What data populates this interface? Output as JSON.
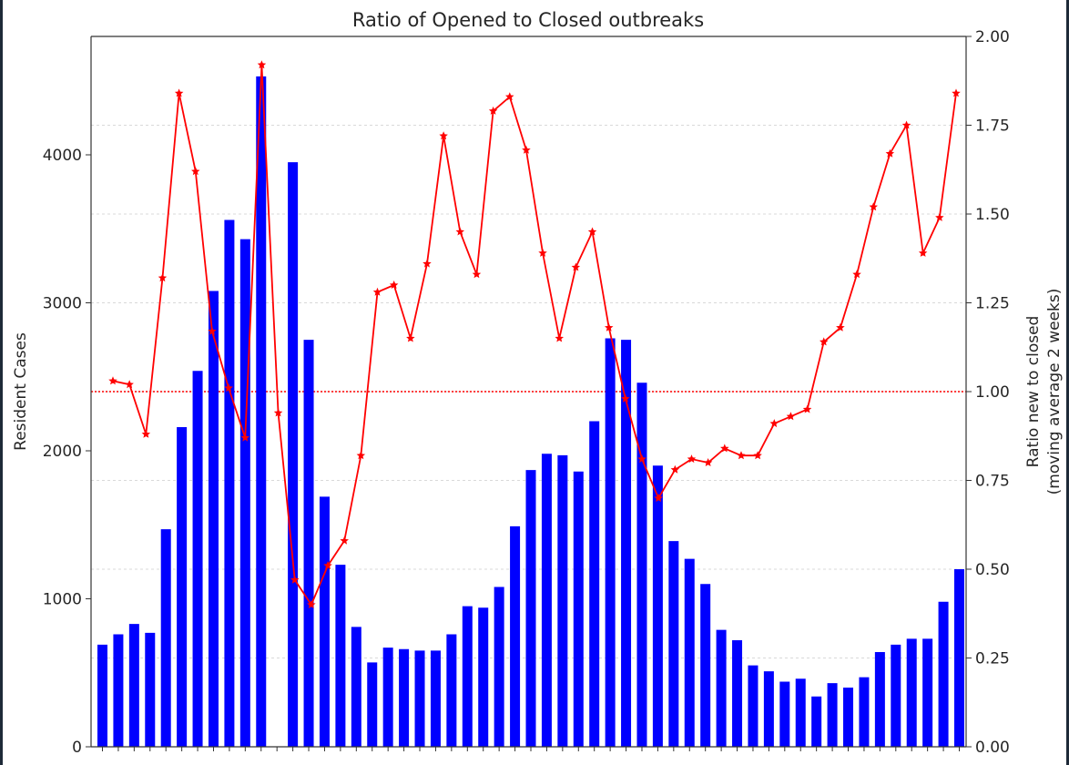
{
  "chart_data": {
    "type": "bar",
    "title": "Ratio of Opened to Closed outbreaks",
    "ylabel_left": "Resident Cases",
    "ylabel_right_line1": "Ratio new to closed",
    "ylabel_right_line2": "(moving average 2 weeks)",
    "ylim_left": [
      0,
      4800
    ],
    "ylim_right": [
      0,
      2.0
    ],
    "yticks_left": [
      0,
      1000,
      2000,
      3000,
      4000
    ],
    "yticks_right": [
      "0.00",
      "0.25",
      "0.50",
      "0.75",
      "1.00",
      "1.25",
      "1.50",
      "1.75",
      "2.00"
    ],
    "grid": "horizontal-dashed",
    "reference_line": {
      "value": 1.0,
      "axis": "right",
      "style": "dotted",
      "color": "#ff0000"
    },
    "bar_color": "#0000ff",
    "line_color": "#ff0000",
    "series": [
      {
        "type": "bar",
        "axis": "left",
        "values": [
          690,
          760,
          830,
          770,
          1470,
          2160,
          2540,
          3080,
          3560,
          3430,
          4530,
          null,
          3950,
          2750,
          1690,
          1230,
          810,
          570,
          670,
          660,
          650,
          650,
          760,
          950,
          940,
          1080,
          1490,
          1870,
          1980,
          1970,
          1860,
          2200,
          2760,
          2750,
          2460,
          1900,
          1390,
          1270,
          1100,
          790,
          720,
          550,
          510,
          440,
          460,
          340,
          430,
          400,
          470,
          640,
          690,
          730,
          730,
          980,
          1200
        ]
      },
      {
        "type": "line",
        "axis": "right",
        "marker": "star",
        "values": [
          1.03,
          1.02,
          0.88,
          1.32,
          1.84,
          1.62,
          1.17,
          1.01,
          0.87,
          1.92,
          0.94,
          0.47,
          0.4,
          0.51,
          0.58,
          0.82,
          1.28,
          1.3,
          1.15,
          1.36,
          1.72,
          1.45,
          1.33,
          1.79,
          1.83,
          1.68,
          1.39,
          1.15,
          1.35,
          1.45,
          1.18,
          0.98,
          0.81,
          0.7,
          0.78,
          0.81,
          0.8,
          0.84,
          0.82,
          0.82,
          0.91,
          0.93,
          0.95,
          1.14,
          1.18,
          1.33,
          1.52,
          1.67,
          1.75,
          1.39,
          1.49,
          1.84
        ]
      }
    ]
  }
}
